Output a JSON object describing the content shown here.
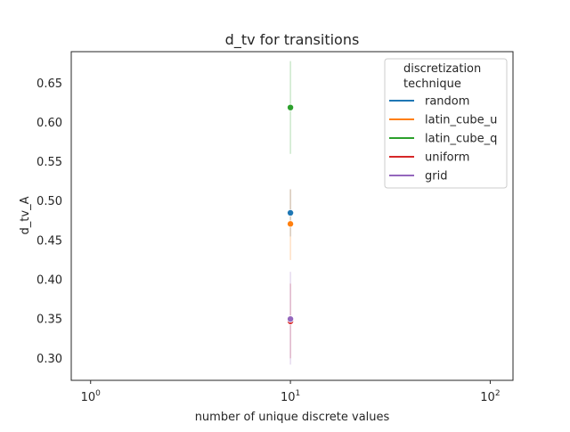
{
  "chart_data": {
    "type": "scatter",
    "title": "d_tv for transitions",
    "xlabel": "number of unique discrete values",
    "ylabel": "d_tv_A",
    "xscale": "log",
    "xlim": [
      0.8,
      130
    ],
    "ylim": [
      0.272,
      0.69
    ],
    "x_ticks": [
      {
        "value": 1,
        "base": "10",
        "exp": "0"
      },
      {
        "value": 10,
        "base": "10",
        "exp": "1"
      },
      {
        "value": 100,
        "base": "10",
        "exp": "2"
      }
    ],
    "y_ticks": [
      {
        "value": 0.3,
        "label": "0.30"
      },
      {
        "value": 0.35,
        "label": "0.35"
      },
      {
        "value": 0.4,
        "label": "0.40"
      },
      {
        "value": 0.45,
        "label": "0.45"
      },
      {
        "value": 0.5,
        "label": "0.50"
      },
      {
        "value": 0.55,
        "label": "0.55"
      },
      {
        "value": 0.6,
        "label": "0.60"
      },
      {
        "value": 0.65,
        "label": "0.65"
      }
    ],
    "grid": false,
    "legend": {
      "title_lines": [
        "discretization",
        "technique"
      ],
      "placement": "top-right"
    },
    "series": [
      {
        "name": "random",
        "color": "#1f77b4",
        "x": 10,
        "y": 0.485,
        "ci": [
          0.455,
          0.515
        ]
      },
      {
        "name": "latin_cube_u",
        "color": "#ff7f0e",
        "x": 10,
        "y": 0.471,
        "ci": [
          0.425,
          0.515
        ]
      },
      {
        "name": "latin_cube_q",
        "color": "#2ca02c",
        "x": 10,
        "y": 0.619,
        "ci": [
          0.56,
          0.678
        ]
      },
      {
        "name": "uniform",
        "color": "#d62728",
        "x": 10,
        "y": 0.347,
        "ci": [
          0.3,
          0.395
        ]
      },
      {
        "name": "grid",
        "color": "#9467bd",
        "x": 10,
        "y": 0.35,
        "ci": [
          0.292,
          0.41
        ]
      }
    ]
  }
}
